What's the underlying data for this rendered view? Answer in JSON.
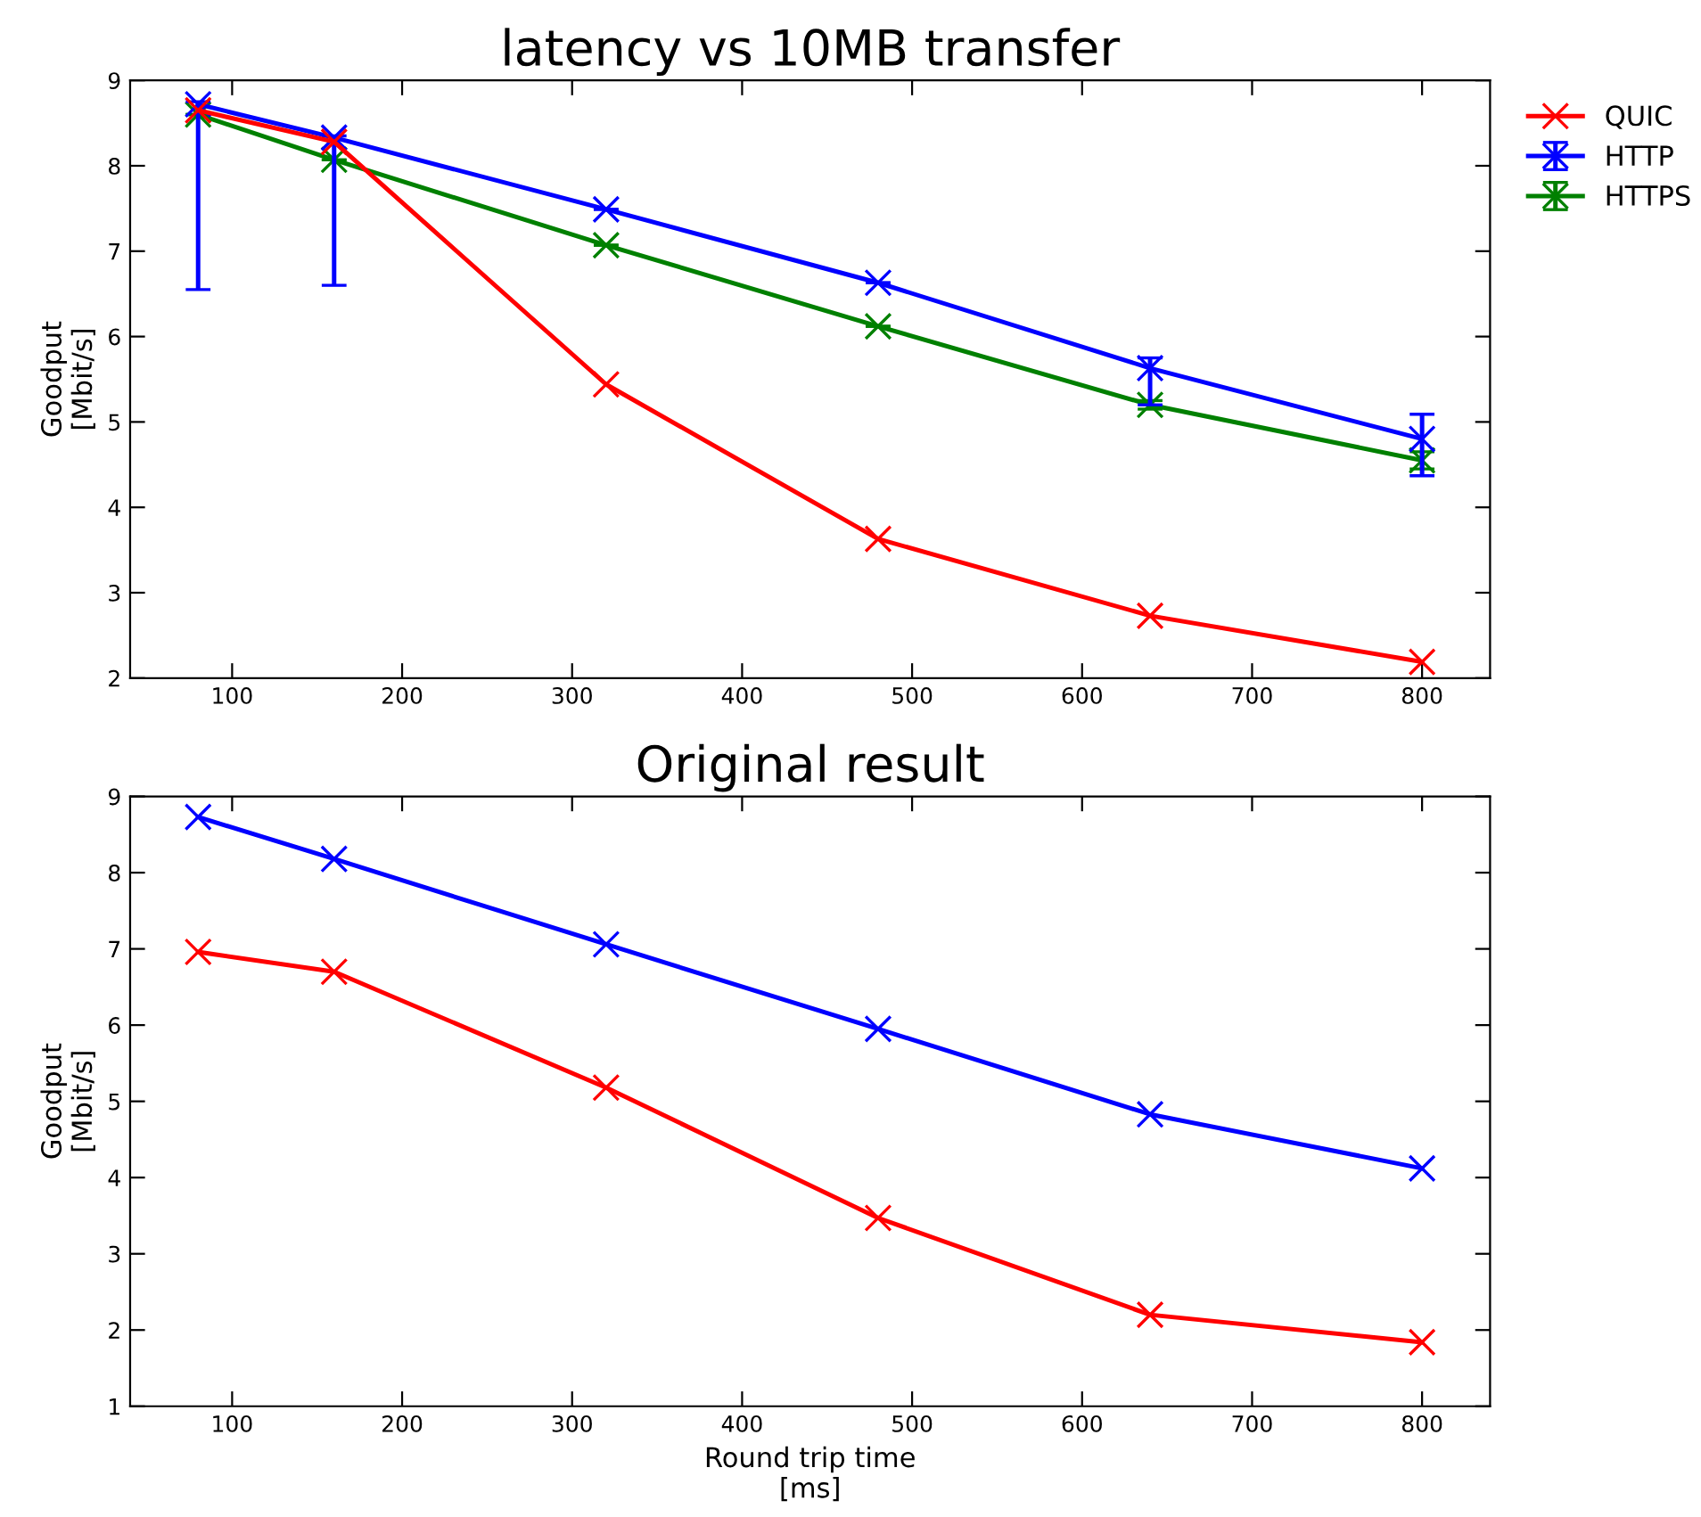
{
  "chart_data": [
    {
      "type": "line",
      "title": "latency vs 10MB transfer",
      "ylabel": "Goodput\n[Mbit/s]",
      "x": [
        80,
        160,
        320,
        480,
        640,
        800
      ],
      "xlim": [
        40,
        840
      ],
      "xticks": [
        100,
        200,
        300,
        400,
        500,
        600,
        700,
        800
      ],
      "ylim": [
        2,
        9
      ],
      "yticks": [
        2,
        3,
        4,
        5,
        6,
        7,
        8,
        9
      ],
      "marker": "cross",
      "legend": "top right",
      "series": [
        {
          "name": "QUIC",
          "color": "#ff0000",
          "values": [
            8.65,
            8.28,
            5.44,
            3.63,
            2.73,
            2.19
          ]
        },
        {
          "name": "HTTP",
          "color": "#0000ff",
          "values": [
            8.72,
            8.33,
            7.49,
            6.63,
            5.63,
            4.8
          ],
          "errors": [
            [
              6.55,
              8.75
            ],
            [
              6.6,
              8.35
            ],
            null,
            null,
            [
              5.2,
              5.75
            ],
            [
              4.37,
              5.09
            ]
          ]
        },
        {
          "name": "HTTPS",
          "color": "#008000",
          "values": [
            8.6,
            8.07,
            7.07,
            6.12,
            5.2,
            4.55
          ],
          "errors": [
            null,
            null,
            null,
            null,
            [
              5.15,
              5.25
            ],
            [
              4.45,
              4.65
            ]
          ]
        }
      ]
    },
    {
      "type": "line",
      "title": "Original result",
      "xlabel": "Round trip time\n[ms]",
      "ylabel": "Goodput\n[Mbit/s]",
      "x": [
        80,
        160,
        320,
        480,
        640,
        800
      ],
      "xlim": [
        40,
        840
      ],
      "xticks": [
        100,
        200,
        300,
        400,
        500,
        600,
        700,
        800
      ],
      "ylim": [
        1,
        9
      ],
      "yticks": [
        1,
        2,
        3,
        4,
        5,
        6,
        7,
        8,
        9
      ],
      "marker": "cross",
      "series": [
        {
          "color": "#ff0000",
          "values": [
            6.96,
            6.7,
            5.18,
            3.47,
            2.2,
            1.84
          ]
        },
        {
          "color": "#0000ff",
          "values": [
            8.73,
            8.18,
            7.06,
            5.95,
            4.83,
            4.12
          ]
        }
      ]
    }
  ]
}
